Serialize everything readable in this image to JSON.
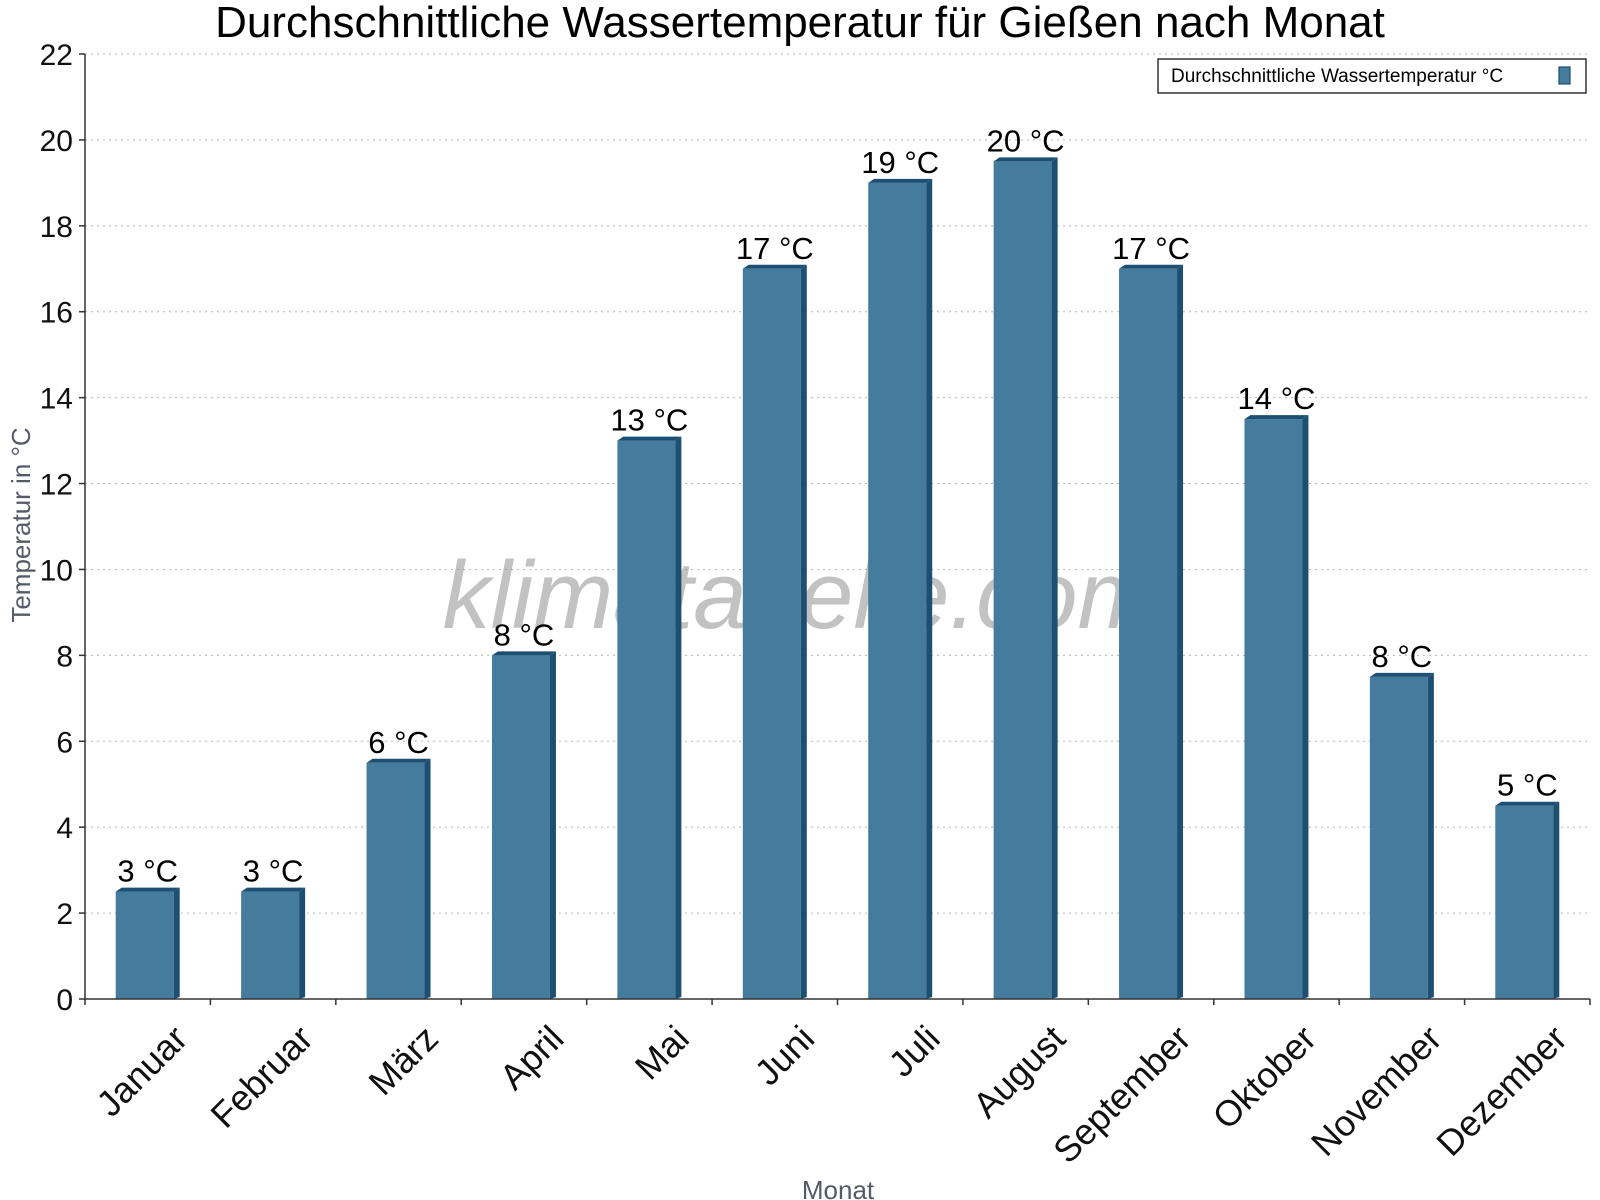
{
  "chart_data": {
    "type": "bar",
    "title": "Durchschnittliche Wassertemperatur für Gießen nach Monat",
    "xlabel": "Monat",
    "ylabel": "Temperatur in °C",
    "ylim": [
      0,
      22
    ],
    "yticks": [
      0,
      2,
      4,
      6,
      8,
      10,
      12,
      14,
      16,
      18,
      20,
      22
    ],
    "grid": true,
    "legend_position": "top-right",
    "categories": [
      "Januar",
      "Februar",
      "März",
      "April",
      "Mai",
      "Juni",
      "Juli",
      "August",
      "September",
      "Oktober",
      "November",
      "Dezember"
    ],
    "series": [
      {
        "name": "Durchschnittliche Wassertemperatur °C",
        "values": [
          2.5,
          2.5,
          5.5,
          8,
          13,
          17,
          19,
          19.5,
          17,
          13.5,
          7.5,
          4.5
        ],
        "labels": [
          "3 °C",
          "3 °C",
          "6 °C",
          "8 °C",
          "13 °C",
          "17 °C",
          "19 °C",
          "20 °C",
          "17 °C",
          "14 °C",
          "8 °C",
          "5 °C"
        ],
        "color": "#457b9d",
        "edge_color": "#1d4f73"
      }
    ]
  },
  "watermark": "klimatabelle.com"
}
